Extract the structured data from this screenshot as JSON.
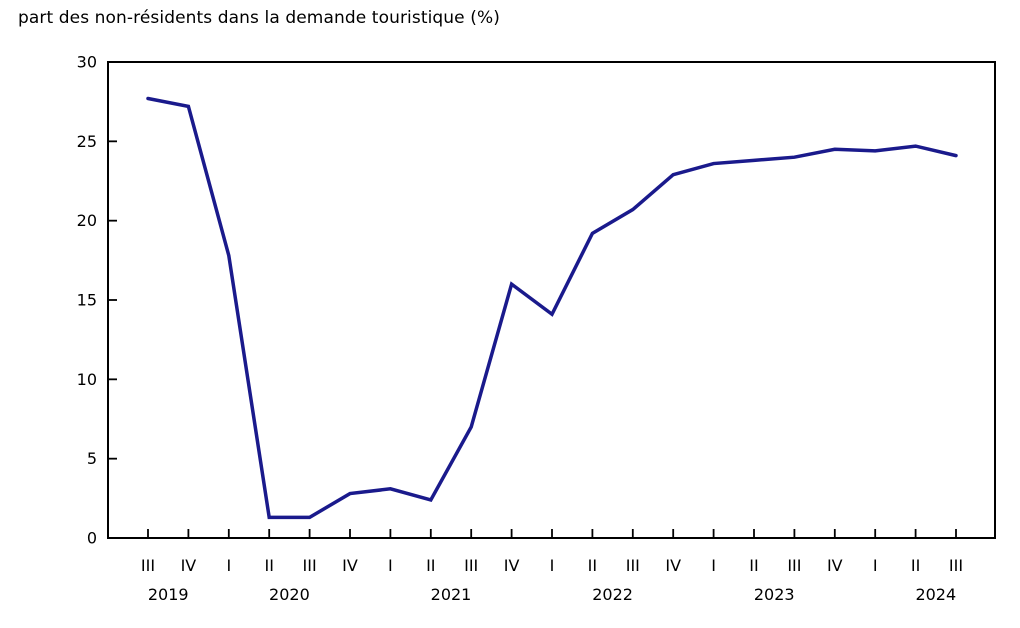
{
  "chart_data": {
    "type": "line",
    "title": "part des non-résidents dans la demande touristique (%)",
    "xlabel": "",
    "ylabel": "",
    "ylim": [
      0,
      30
    ],
    "y_ticks": [
      0,
      5,
      10,
      15,
      20,
      25,
      30
    ],
    "grid": "off",
    "legend": "none",
    "x_tick_labels": [
      "III",
      "IV",
      "I",
      "II",
      "III",
      "IV",
      "I",
      "II",
      "III",
      "IV",
      "I",
      "II",
      "III",
      "IV",
      "I",
      "II",
      "III",
      "IV",
      "I",
      "II",
      "III"
    ],
    "year_labels": [
      {
        "year": "2019",
        "center_slot": 0.5
      },
      {
        "year": "2020",
        "center_slot": 3.5
      },
      {
        "year": "2021",
        "center_slot": 7.5
      },
      {
        "year": "2022",
        "center_slot": 11.5
      },
      {
        "year": "2023",
        "center_slot": 15.5
      },
      {
        "year": "2024",
        "center_slot": 19.5
      }
    ],
    "series": [
      {
        "name": "part des non-résidents",
        "values": [
          27.7,
          27.2,
          17.8,
          1.3,
          1.3,
          2.8,
          3.1,
          2.4,
          7.0,
          16.0,
          14.1,
          19.2,
          20.7,
          22.9,
          23.6,
          23.8,
          24.0,
          24.5,
          24.4,
          24.7,
          24.1
        ]
      }
    ],
    "line_color": "#1a1a8c",
    "axis_color": "#000000"
  }
}
